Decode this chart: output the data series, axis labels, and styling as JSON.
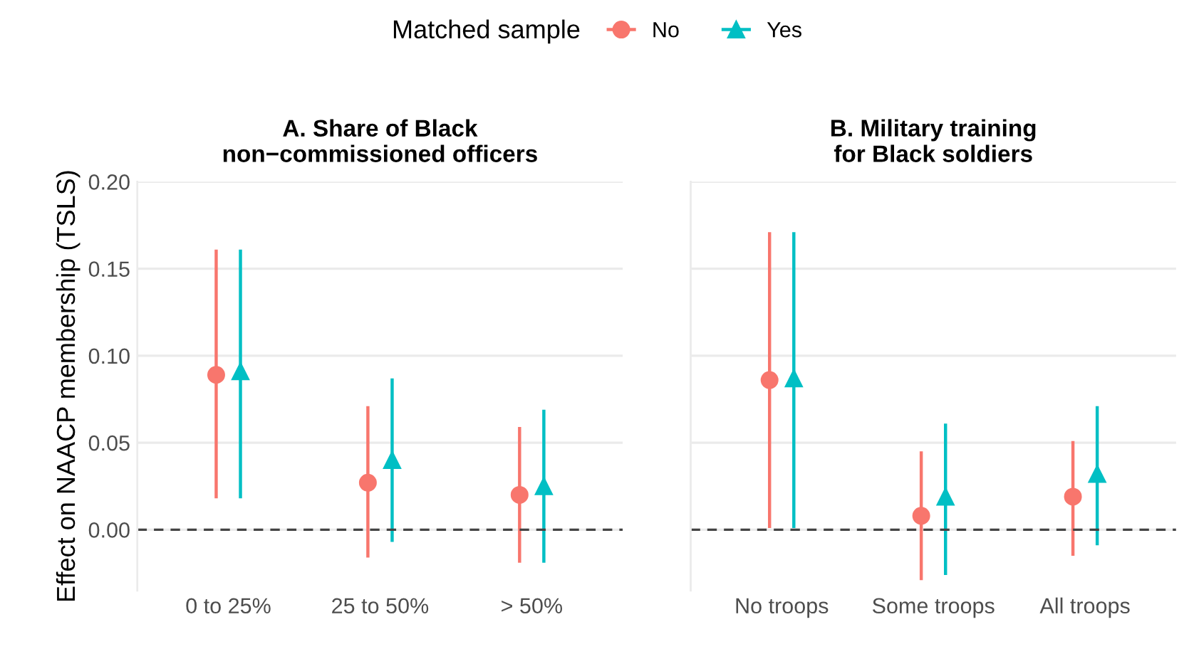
{
  "chart_data": [
    {
      "type": "scatter",
      "title": "A. Share of Black\nnon−commissioned officers",
      "ylabel": "Effect on NAACP membership (TSLS)",
      "legend_title": "Matched sample",
      "legend": "top",
      "grid": "y",
      "categories": [
        "0 to 25%",
        "25 to 50%",
        "> 50%"
      ],
      "ylim": [
        -0.035,
        0.2
      ],
      "yticks": [
        {
          "value": 0,
          "label": "0.00"
        },
        0.05,
        {
          "value": 0.1,
          "label": "0.10"
        },
        0.15,
        {
          "value": 0.2,
          "label": "0.20"
        }
      ],
      "ref_lines": [
        {
          "axis": "y",
          "value": 0,
          "color": "#444444",
          "line_style": "dashed"
        }
      ],
      "series": [
        {
          "name": "No",
          "color": "#f8766d",
          "marker": "circle",
          "values": [
            0.089,
            0.027,
            0.02
          ],
          "errors": [
            [
              0.018,
              0.161
            ],
            [
              -0.016,
              0.071
            ],
            [
              -0.019,
              0.059
            ]
          ]
        },
        {
          "name": "Yes",
          "color": "#00bfc4",
          "marker": "triangle",
          "values": [
            0.091,
            0.04,
            0.025
          ],
          "errors": [
            [
              0.018,
              0.161
            ],
            [
              -0.007,
              0.087
            ],
            [
              -0.019,
              0.069
            ]
          ]
        }
      ]
    },
    {
      "type": "scatter",
      "title": "B. Military training\nfor Black soldiers",
      "grid": "y",
      "tick_labels": "x",
      "categories": [
        "No troops",
        "Some troops",
        "All troops"
      ],
      "ylim": [
        -0.035,
        0.2
      ],
      "yticks": [
        0,
        0.05,
        0.1,
        0.15,
        0.2
      ],
      "ref_lines": [
        {
          "axis": "y",
          "value": 0,
          "color": "#444444",
          "line_style": "dashed"
        }
      ],
      "series": [
        {
          "name": "No",
          "color": "#f8766d",
          "marker": "circle",
          "values": [
            0.086,
            0.008,
            0.019
          ],
          "errors": [
            [
              0.001,
              0.171
            ],
            [
              -0.029,
              0.045
            ],
            [
              -0.015,
              0.051
            ]
          ]
        },
        {
          "name": "Yes",
          "color": "#00bfc4",
          "marker": "triangle",
          "values": [
            0.087,
            0.019,
            0.032
          ],
          "errors": [
            [
              0.001,
              0.171
            ],
            [
              -0.026,
              0.061
            ],
            [
              -0.009,
              0.071
            ]
          ]
        }
      ]
    }
  ]
}
